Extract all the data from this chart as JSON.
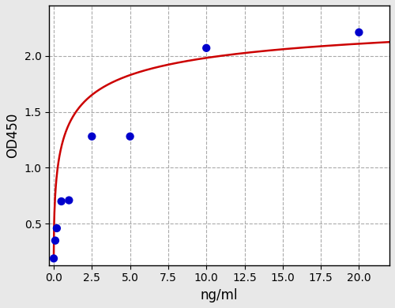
{
  "scatter_x": [
    0.0,
    0.1,
    0.2,
    0.5,
    1.0,
    2.5,
    5.0,
    10.0,
    20.0
  ],
  "scatter_y": [
    0.19,
    0.35,
    0.46,
    0.7,
    0.71,
    1.28,
    1.28,
    2.07,
    2.21
  ],
  "scatter_color": "#0000cc",
  "scatter_size": 55,
  "curve_color": "#cc0000",
  "curve_linewidth": 1.8,
  "xlabel": "ng/ml",
  "ylabel": "OD450",
  "xlim": [
    -0.3,
    22.0
  ],
  "ylim": [
    0.13,
    2.45
  ],
  "xticks": [
    0.0,
    2.5,
    5.0,
    7.5,
    10.0,
    12.5,
    15.0,
    17.5,
    20.0
  ],
  "yticks": [
    0.5,
    1.0,
    1.5,
    2.0
  ],
  "background_color": "#e8e8e8",
  "plot_background_color": "#ffffff",
  "grid_color": "#aaaaaa",
  "grid_linestyle": "--",
  "xlabel_fontsize": 12,
  "ylabel_fontsize": 12,
  "tick_fontsize": 10,
  "curve_x_start": 0.001,
  "curve_x_end": 22.0,
  "figwidth": 5.0,
  "figheight": 3.9,
  "dpi": 100
}
